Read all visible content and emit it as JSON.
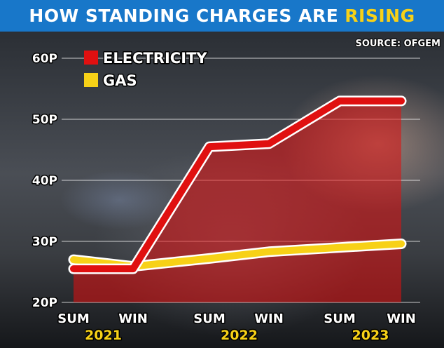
{
  "title": {
    "main": "HOW STANDING CHARGES ARE",
    "highlight": "RISING"
  },
  "source": "SOURCE: OFGEM",
  "colors": {
    "title_bg": "#1877c9",
    "highlight": "#f7d117",
    "electricity": "#e01010",
    "gas": "#f7d117",
    "year_label": "#f7d117"
  },
  "chart_data": {
    "type": "line",
    "categories": [
      "SUM",
      "WIN",
      "SUM",
      "WIN",
      "SUM",
      "WIN"
    ],
    "years": [
      "2021",
      "2022",
      "2023"
    ],
    "ylim": [
      20,
      60
    ],
    "yticks": [
      20,
      30,
      40,
      50,
      60
    ],
    "ytick_labels": [
      "20P",
      "30P",
      "40P",
      "50P",
      "60P"
    ],
    "legend_position": "top-left",
    "grid": true,
    "series": [
      {
        "name": "ELECTRICITY",
        "values": [
          25.5,
          25.5,
          45.5,
          46,
          53,
          53
        ]
      },
      {
        "name": "GAS",
        "values": [
          27,
          25.9,
          27.2,
          28.3,
          29,
          29.6
        ]
      }
    ]
  }
}
